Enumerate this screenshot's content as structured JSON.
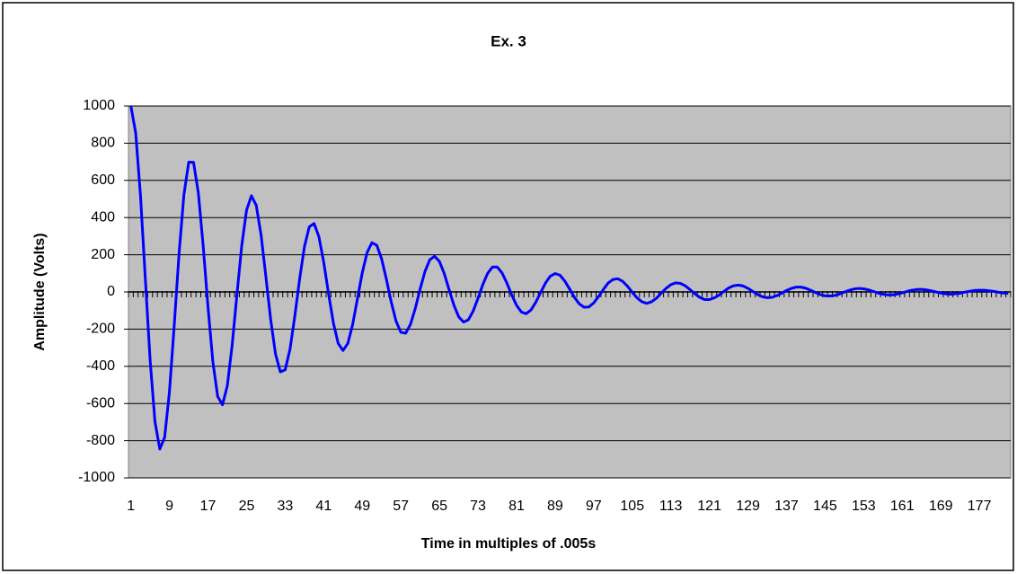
{
  "chart_data": {
    "type": "line",
    "title": "Ex. 3",
    "x_label": "Time in multiples of .005s",
    "y_label": "Amplitude (Volts)",
    "categories": [
      1,
      null,
      null,
      null,
      null,
      null,
      null,
      null,
      9,
      null,
      null,
      null,
      null,
      null,
      null,
      null,
      17,
      null,
      null,
      null,
      null,
      null,
      null,
      null,
      25,
      null,
      null,
      null,
      null,
      null,
      null,
      null,
      33,
      null,
      null,
      null,
      null,
      null,
      null,
      null,
      41,
      null,
      null,
      null,
      null,
      null,
      null,
      null,
      49,
      null,
      null,
      null,
      null,
      null,
      null,
      null,
      57,
      null,
      null,
      null,
      null,
      null,
      null,
      null,
      65,
      null,
      null,
      null,
      null,
      null,
      null,
      null,
      73,
      null,
      null,
      null,
      null,
      null,
      null,
      null,
      81,
      null,
      null,
      null,
      null,
      null,
      null,
      null,
      89,
      null,
      null,
      null,
      null,
      null,
      null,
      null,
      97,
      null,
      null,
      null,
      null,
      null,
      null,
      null,
      105,
      null,
      null,
      null,
      null,
      null,
      null,
      null,
      113,
      null,
      null,
      null,
      null,
      null,
      null,
      null,
      121,
      null,
      null,
      null,
      null,
      null,
      null,
      null,
      129,
      null,
      null,
      null,
      null,
      null,
      null,
      null,
      137,
      null,
      null,
      null,
      null,
      null,
      null,
      null,
      145,
      null,
      null,
      null,
      null,
      null,
      null,
      null,
      153,
      null,
      null,
      null,
      null,
      null,
      null,
      null,
      161,
      null,
      null,
      null,
      null,
      null,
      null,
      null,
      169,
      null,
      null,
      null,
      null,
      null,
      null,
      null,
      177,
      null,
      null,
      null,
      null,
      null,
      null
    ],
    "series": [
      {
        "color": "#0000ff",
        "values": [
          1000,
          855,
          515,
          69,
          -370,
          -699,
          -845,
          -782,
          -537,
          -176,
          208,
          523,
          698,
          697,
          531,
          247,
          -82,
          -374,
          -562,
          -607,
          -505,
          -288,
          -14,
          250,
          441,
          517,
          466,
          307,
          83,
          -149,
          -334,
          -430,
          -419,
          -309,
          -131,
          69,
          243,
          350,
          368,
          297,
          160,
          -9,
          -166,
          -277,
          -315,
          -277,
          -175,
          -36,
          104,
          212,
          265,
          251,
          179,
          68,
          -54,
          -157,
          -217,
          -222,
          -174,
          -88,
          16,
          110,
          173,
          192,
          164,
          99,
          13,
          -71,
          -134,
          -162,
          -150,
          -103,
          -34,
          40,
          100,
          134,
          134,
          102,
          47,
          -16,
          -72,
          -108,
          -117,
          -97,
          -55,
          -3,
          48,
          85,
          99,
          90,
          59,
          16,
          -29,
          -64,
          -82,
          -81,
          -59,
          -25,
          13,
          48,
          67,
          71,
          57,
          31,
          -2,
          -32,
          -53,
          -61,
          -53,
          -34,
          -7,
          19,
          39,
          49,
          46,
          33,
          12,
          -10,
          -29,
          -41,
          -41,
          -32,
          -17,
          3,
          21,
          33,
          37,
          32,
          19,
          3,
          -14,
          -26,
          -31,
          -29,
          -20,
          -7,
          8,
          19,
          26,
          26,
          20,
          9,
          -3,
          -14,
          -21,
          -22,
          -19,
          -11,
          -1,
          9,
          16,
          19,
          17,
          11,
          3,
          -6,
          -12,
          -16,
          -16,
          -11,
          -5,
          3,
          9,
          13,
          14,
          11,
          6,
          0,
          -6,
          -10,
          -12,
          -10,
          -7,
          -1,
          4,
          8,
          9,
          9,
          6,
          3,
          -2,
          -6,
          -8
        ]
      }
    ],
    "ylim": [
      -1000,
      1000
    ],
    "yticks": [
      -1000,
      -800,
      -600,
      -400,
      -200,
      0,
      200,
      400,
      600,
      800,
      1000
    ],
    "grid": true
  }
}
